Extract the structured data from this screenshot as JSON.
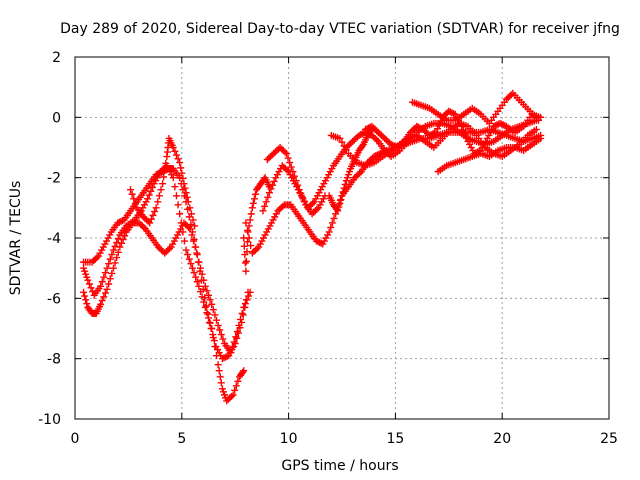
{
  "chart_data": {
    "type": "scatter",
    "title": "Day 289 of 2020, Sidereal Day-to-day VTEC variation (SDTVAR) for receiver jfng",
    "xlabel": "GPS time / hours",
    "ylabel": "SDTVAR / TECUs",
    "xlim": [
      0,
      25
    ],
    "ylim": [
      -10,
      2
    ],
    "xticks": [
      0,
      5,
      10,
      15,
      20,
      25
    ],
    "yticks": [
      -10,
      -8,
      -6,
      -4,
      -2,
      0,
      2
    ],
    "xtick_labels": [
      "0",
      "5",
      "10",
      "15",
      "20",
      "25"
    ],
    "ytick_labels": [
      "-10",
      "-8",
      "-6",
      "-4",
      "-2",
      "0",
      "2"
    ],
    "grid": true,
    "marker": "+",
    "color": "#ff0000",
    "series": [
      {
        "points": [
          [
            0.4,
            -5.8
          ],
          [
            0.6,
            -6.3
          ],
          [
            0.8,
            -6.5
          ],
          [
            1.0,
            -6.5
          ],
          [
            1.2,
            -6.2
          ],
          [
            1.5,
            -5.7
          ],
          [
            1.8,
            -5.0
          ],
          [
            2.1,
            -4.3
          ],
          [
            2.4,
            -3.8
          ],
          [
            2.7,
            -3.5
          ],
          [
            3.0,
            -3.5
          ],
          [
            3.3,
            -3.7
          ],
          [
            3.6,
            -4.0
          ],
          [
            3.9,
            -4.3
          ],
          [
            4.2,
            -4.5
          ],
          [
            4.5,
            -4.3
          ],
          [
            4.8,
            -3.9
          ],
          [
            5.1,
            -3.5
          ],
          [
            5.4,
            -3.7
          ],
          [
            5.7,
            -4.5
          ],
          [
            6.0,
            -5.7
          ],
          [
            6.3,
            -6.8
          ],
          [
            6.6,
            -7.6
          ],
          [
            6.9,
            -8.0
          ],
          [
            7.2,
            -7.9
          ],
          [
            7.5,
            -7.5
          ],
          [
            7.8,
            -6.8
          ],
          [
            8.1,
            -5.8
          ]
        ]
      },
      {
        "points": [
          [
            0.4,
            -5.0
          ],
          [
            0.6,
            -5.4
          ],
          [
            0.9,
            -5.9
          ],
          [
            1.2,
            -5.6
          ],
          [
            1.5,
            -5.0
          ],
          [
            1.8,
            -4.4
          ],
          [
            2.1,
            -3.9
          ],
          [
            2.4,
            -3.6
          ],
          [
            2.8,
            -3.4
          ],
          [
            3.1,
            -3.1
          ],
          [
            3.4,
            -2.7
          ],
          [
            3.7,
            -2.2
          ],
          [
            4.0,
            -1.8
          ],
          [
            4.3,
            -1.6
          ],
          [
            4.6,
            -2.0
          ],
          [
            4.9,
            -3.2
          ],
          [
            5.2,
            -4.4
          ],
          [
            5.5,
            -5.0
          ],
          [
            5.8,
            -5.6
          ],
          [
            6.1,
            -6.3
          ],
          [
            6.4,
            -7.0
          ],
          [
            6.7,
            -8.2
          ],
          [
            6.9,
            -9.0
          ],
          [
            7.1,
            -9.4
          ],
          [
            7.4,
            -9.2
          ],
          [
            7.7,
            -8.6
          ],
          [
            7.9,
            -8.4
          ]
        ]
      },
      {
        "points": [
          [
            0.4,
            -4.8
          ],
          [
            0.8,
            -4.8
          ],
          [
            1.1,
            -4.6
          ],
          [
            1.4,
            -4.2
          ],
          [
            1.7,
            -3.8
          ],
          [
            2.0,
            -3.5
          ],
          [
            2.3,
            -3.4
          ],
          [
            2.6,
            -3.1
          ],
          [
            2.9,
            -2.8
          ],
          [
            3.2,
            -2.5
          ],
          [
            3.5,
            -2.2
          ],
          [
            3.8,
            -1.9
          ],
          [
            4.1,
            -1.8
          ],
          [
            4.4,
            -1.7
          ],
          [
            4.6,
            -1.7
          ],
          [
            4.9,
            -2.0
          ],
          [
            5.2,
            -2.8
          ],
          [
            5.5,
            -3.8
          ],
          [
            5.8,
            -4.8
          ],
          [
            6.1,
            -5.6
          ],
          [
            6.4,
            -6.2
          ],
          [
            6.7,
            -6.9
          ],
          [
            7.0,
            -7.5
          ],
          [
            7.3,
            -7.8
          ],
          [
            7.6,
            -7.1
          ],
          [
            7.9,
            -6.3
          ],
          [
            8.2,
            -5.8
          ]
        ]
      },
      {
        "points": [
          [
            2.6,
            -2.4
          ],
          [
            2.9,
            -3.0
          ],
          [
            3.2,
            -3.3
          ],
          [
            3.5,
            -3.5
          ],
          [
            3.8,
            -3.0
          ],
          [
            4.1,
            -2.2
          ],
          [
            4.3,
            -1.3
          ],
          [
            4.4,
            -0.7
          ],
          [
            4.6,
            -1.0
          ],
          [
            4.9,
            -1.5
          ],
          [
            5.1,
            -2.2
          ],
          [
            5.3,
            -2.8
          ],
          [
            5.6,
            -3.6
          ]
        ]
      },
      {
        "points": [
          [
            8.0,
            -3.5
          ],
          [
            8.3,
            -4.5
          ],
          [
            8.6,
            -4.3
          ],
          [
            8.9,
            -3.9
          ],
          [
            9.2,
            -3.5
          ],
          [
            9.5,
            -3.1
          ],
          [
            9.8,
            -2.9
          ],
          [
            10.1,
            -2.9
          ],
          [
            10.4,
            -3.2
          ],
          [
            10.7,
            -3.5
          ],
          [
            11.0,
            -3.8
          ],
          [
            11.3,
            -4.1
          ],
          [
            11.6,
            -4.2
          ],
          [
            11.9,
            -3.8
          ],
          [
            12.2,
            -3.2
          ],
          [
            12.5,
            -2.6
          ],
          [
            12.8,
            -2.3
          ],
          [
            13.1,
            -2.0
          ],
          [
            13.4,
            -1.8
          ],
          [
            13.7,
            -1.5
          ],
          [
            14.0,
            -1.3
          ],
          [
            14.3,
            -1.2
          ],
          [
            14.6,
            -1.1
          ],
          [
            15.0,
            -1.0
          ],
          [
            15.4,
            -0.9
          ],
          [
            15.8,
            -0.8
          ],
          [
            16.2,
            -0.7
          ],
          [
            16.6,
            -0.7
          ],
          [
            17.0,
            -0.6
          ],
          [
            17.4,
            -0.5
          ],
          [
            17.8,
            -0.5
          ],
          [
            18.2,
            -0.5
          ],
          [
            18.6,
            -0.5
          ],
          [
            19.0,
            -0.5
          ],
          [
            19.4,
            -0.4
          ],
          [
            19.8,
            -0.5
          ],
          [
            20.2,
            -0.6
          ],
          [
            20.6,
            -0.7
          ],
          [
            21.0,
            -0.8
          ],
          [
            21.4,
            -0.7
          ],
          [
            21.8,
            -0.6
          ]
        ]
      },
      {
        "points": [
          [
            8.8,
            -3.1
          ],
          [
            9.1,
            -2.5
          ],
          [
            9.4,
            -2.0
          ],
          [
            9.7,
            -1.6
          ],
          [
            10.0,
            -1.8
          ],
          [
            10.3,
            -2.2
          ],
          [
            10.6,
            -2.6
          ],
          [
            10.9,
            -3.0
          ],
          [
            11.2,
            -2.8
          ],
          [
            11.5,
            -2.4
          ],
          [
            11.8,
            -2.0
          ],
          [
            12.1,
            -1.6
          ],
          [
            12.4,
            -1.3
          ],
          [
            12.7,
            -1.0
          ],
          [
            13.0,
            -0.8
          ],
          [
            13.3,
            -0.6
          ],
          [
            13.6,
            -0.5
          ],
          [
            13.9,
            -0.6
          ],
          [
            14.2,
            -0.8
          ],
          [
            14.5,
            -1.1
          ],
          [
            14.8,
            -1.3
          ],
          [
            15.2,
            -1.1
          ],
          [
            15.6,
            -0.8
          ],
          [
            16.0,
            -0.5
          ],
          [
            16.4,
            -0.3
          ],
          [
            16.8,
            -0.2
          ],
          [
            17.2,
            -0.2
          ],
          [
            17.6,
            -0.3
          ],
          [
            18.0,
            -0.5
          ],
          [
            18.4,
            -0.7
          ],
          [
            18.8,
            -0.8
          ],
          [
            19.2,
            -0.9
          ],
          [
            19.6,
            -0.8
          ],
          [
            20.0,
            -0.6
          ],
          [
            20.4,
            -0.4
          ],
          [
            20.8,
            -0.3
          ],
          [
            21.2,
            -0.2
          ],
          [
            21.6,
            -0.1
          ]
        ]
      },
      {
        "points": [
          [
            9.0,
            -1.4
          ],
          [
            9.3,
            -1.2
          ],
          [
            9.6,
            -1.0
          ],
          [
            9.9,
            -1.2
          ],
          [
            10.2,
            -1.8
          ],
          [
            10.5,
            -2.4
          ],
          [
            10.8,
            -2.9
          ],
          [
            11.1,
            -3.2
          ],
          [
            11.4,
            -3.0
          ],
          [
            11.7,
            -2.6
          ]
        ]
      },
      {
        "points": [
          [
            12.0,
            -0.6
          ],
          [
            12.4,
            -0.7
          ],
          [
            12.8,
            -1.2
          ],
          [
            13.2,
            -1.5
          ],
          [
            13.6,
            -1.6
          ],
          [
            14.0,
            -1.5
          ],
          [
            14.4,
            -1.3
          ],
          [
            14.8,
            -1.1
          ],
          [
            15.2,
            -0.9
          ],
          [
            15.6,
            -0.7
          ],
          [
            16.0,
            -0.6
          ],
          [
            16.4,
            -0.8
          ],
          [
            16.8,
            -1.0
          ],
          [
            17.2,
            -0.7
          ],
          [
            17.6,
            -0.4
          ],
          [
            18.0,
            -0.2
          ],
          [
            18.4,
            -0.3
          ],
          [
            18.8,
            -0.6
          ],
          [
            19.2,
            -1.0
          ],
          [
            19.6,
            -1.2
          ],
          [
            20.0,
            -1.3
          ],
          [
            20.4,
            -1.1
          ],
          [
            20.8,
            -0.9
          ],
          [
            21.2,
            -0.6
          ],
          [
            21.6,
            -0.4
          ]
        ]
      },
      {
        "points": [
          [
            15.8,
            0.5
          ],
          [
            16.2,
            0.4
          ],
          [
            16.6,
            0.3
          ],
          [
            17.0,
            0.1
          ],
          [
            17.4,
            -0.1
          ],
          [
            17.8,
            -0.1
          ],
          [
            18.2,
            0.1
          ],
          [
            18.6,
            0.3
          ],
          [
            19.0,
            0.1
          ],
          [
            19.4,
            -0.2
          ],
          [
            19.8,
            0.2
          ],
          [
            20.2,
            0.6
          ],
          [
            20.5,
            0.8
          ],
          [
            20.9,
            0.5
          ],
          [
            21.3,
            0.2
          ],
          [
            21.7,
            -0.1
          ]
        ]
      },
      {
        "points": [
          [
            17.0,
            -1.8
          ],
          [
            17.4,
            -1.6
          ],
          [
            17.8,
            -1.5
          ],
          [
            18.2,
            -1.4
          ],
          [
            18.6,
            -1.3
          ],
          [
            19.0,
            -1.2
          ],
          [
            19.4,
            -1.3
          ],
          [
            19.8,
            -1.1
          ],
          [
            20.2,
            -1.0
          ],
          [
            20.6,
            -1.0
          ],
          [
            21.0,
            -1.1
          ],
          [
            21.4,
            -0.9
          ],
          [
            21.8,
            -0.7
          ]
        ]
      },
      {
        "points": [
          [
            13.6,
            -0.4
          ],
          [
            13.9,
            -0.3
          ],
          [
            14.2,
            -0.5
          ],
          [
            14.5,
            -0.7
          ],
          [
            14.8,
            -0.9
          ],
          [
            15.1,
            -1.0
          ],
          [
            15.4,
            -0.8
          ],
          [
            15.7,
            -0.5
          ],
          [
            16.0,
            -0.3
          ],
          [
            16.3,
            -0.4
          ],
          [
            16.6,
            -0.6
          ],
          [
            16.9,
            -0.5
          ],
          [
            17.2,
            0.0
          ],
          [
            17.5,
            0.2
          ],
          [
            17.8,
            0.1
          ],
          [
            18.1,
            -0.3
          ],
          [
            18.4,
            -0.8
          ],
          [
            18.7,
            -1.2
          ],
          [
            19.0,
            -1.1
          ],
          [
            19.3,
            -0.7
          ],
          [
            19.6,
            -0.3
          ],
          [
            19.9,
            -0.2
          ],
          [
            20.2,
            -0.3
          ],
          [
            20.6,
            -0.5
          ],
          [
            21.0,
            -0.3
          ],
          [
            21.4,
            0.1
          ],
          [
            21.8,
            0.0
          ]
        ]
      },
      {
        "points": [
          [
            7.9,
            -4.0
          ],
          [
            8.0,
            -5.1
          ],
          [
            8.1,
            -3.8
          ],
          [
            8.3,
            -3.0
          ],
          [
            8.5,
            -2.4
          ],
          [
            8.7,
            -2.2
          ],
          [
            8.9,
            -2.0
          ],
          [
            9.1,
            -2.3
          ]
        ]
      },
      {
        "points": [
          [
            11.9,
            -2.6
          ],
          [
            12.1,
            -2.9
          ],
          [
            12.3,
            -3.1
          ],
          [
            12.5,
            -2.6
          ],
          [
            12.7,
            -2.1
          ],
          [
            12.9,
            -1.7
          ],
          [
            13.1,
            -1.4
          ],
          [
            13.3,
            -1.1
          ],
          [
            13.5,
            -0.9
          ],
          [
            13.7,
            -0.6
          ],
          [
            13.9,
            -0.4
          ]
        ]
      }
    ]
  }
}
